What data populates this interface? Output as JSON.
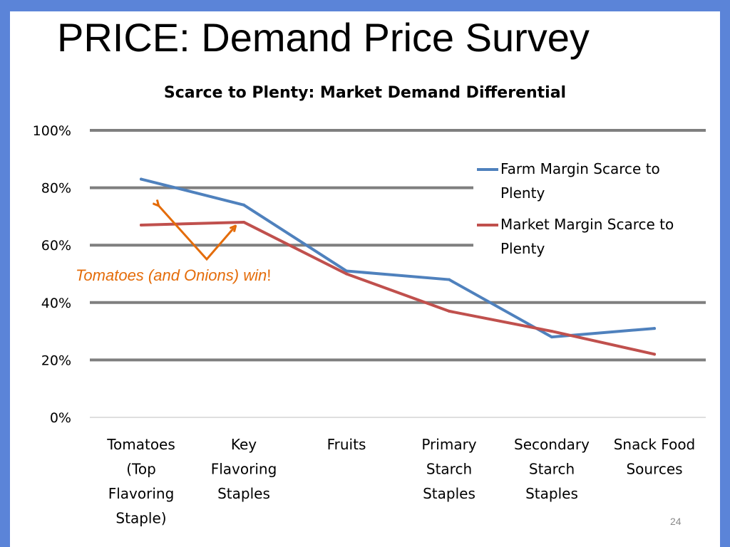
{
  "slide": {
    "title": "PRICE: Demand Price Survey",
    "page_number": "24",
    "annotation": {
      "text": "Tomatoes (and Onions) win",
      "suffix": "!"
    }
  },
  "colors": {
    "background_frame": "#5b84d8",
    "farm_series": "#4f81bd",
    "market_series": "#c0504d",
    "annotation": "#e46c0a",
    "gridline": "#7f7f7f"
  },
  "chart_data": {
    "type": "line",
    "title": "Scarce to Plenty: Market Demand Differential",
    "xlabel": "",
    "ylabel": "",
    "ylim": [
      0,
      1
    ],
    "yticks": [
      "0%",
      "20%",
      "40%",
      "60%",
      "80%",
      "100%"
    ],
    "grid": true,
    "legend_position": "top-right",
    "categories": [
      [
        "Tomatoes",
        "(Top",
        "Flavoring",
        "Staple)"
      ],
      [
        "Key",
        "Flavoring",
        "Staples"
      ],
      [
        "Fruits"
      ],
      [
        "Primary",
        "Starch",
        "Staples"
      ],
      [
        "Secondary",
        "Starch",
        "Staples"
      ],
      [
        "Snack Food",
        "Sources"
      ]
    ],
    "series": [
      {
        "name": "Farm Margin Scarce to Plenty",
        "values": [
          0.83,
          0.74,
          0.51,
          0.48,
          0.28,
          0.31
        ]
      },
      {
        "name": "Market Margin Scarce to Plenty",
        "values": [
          0.67,
          0.68,
          0.5,
          0.37,
          0.3,
          0.22
        ]
      }
    ]
  }
}
